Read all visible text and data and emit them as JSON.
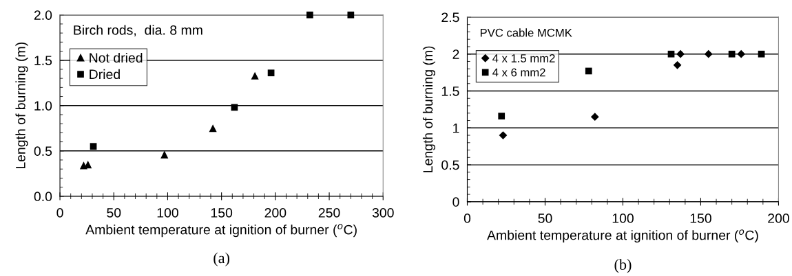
{
  "chart_data": [
    {
      "type": "scatter",
      "xlabel": "Ambient temperature at ignition of burner ($^{o}$C)",
      "ylabel": "Length of burning (m)",
      "annotations": [
        "Birch rods,  dia. 8 mm",
        "(a)"
      ],
      "series": [
        {
          "name": "Not dried",
          "color": "#000000",
          "marker": "triangle",
          "x": [
            22,
            26,
            97,
            142,
            181
          ],
          "values": [
            0.34,
            0.35,
            0.46,
            0.75,
            1.33
          ]
        },
        {
          "name": "Dried",
          "color": "#000000",
          "marker": "square",
          "x": [
            31,
            162,
            196,
            232,
            270
          ],
          "values": [
            0.55,
            0.98,
            1.36,
            2.0,
            2.0
          ]
        }
      ],
      "xlim": [
        0,
        300
      ],
      "xticks": [
        0,
        50,
        100,
        150,
        200,
        250,
        300
      ],
      "ylim": [
        0,
        2
      ],
      "yticks": [
        {
          "value": 0,
          "label": "0.0"
        },
        {
          "value": 0.5,
          "label": "0.5"
        },
        {
          "value": 1,
          "label": "1.0"
        },
        {
          "value": 1.5,
          "label": "1.5"
        },
        {
          "value": 2,
          "label": "2.0"
        }
      ],
      "grid": "y",
      "legend": "top left"
    },
    {
      "type": "scatter",
      "xlabel": "Ambient temperature at ignition of burner ($^{o}$C)",
      "ylabel": "Length of burning (m)",
      "annotations": [
        "PVC cable MCMK",
        "(b)"
      ],
      "series": [
        {
          "name": "4 x 1.5 mm2",
          "color": "#000000",
          "marker": "diamond",
          "x": [
            23,
            82,
            135,
            137,
            155,
            176
          ],
          "values": [
            0.9,
            1.15,
            1.85,
            2.0,
            2.0,
            2.0
          ]
        },
        {
          "name": "4 x 6 mm2",
          "color": "#000000",
          "marker": "square",
          "x": [
            22,
            78,
            131,
            170,
            189
          ],
          "values": [
            1.16,
            1.77,
            2.0,
            2.0,
            2.0
          ]
        }
      ],
      "xlim": [
        0,
        200
      ],
      "xticks": [
        0,
        50,
        100,
        150,
        200
      ],
      "ylim": [
        0,
        2.5
      ],
      "yticks": [
        0,
        0.5,
        1,
        1.5,
        2,
        2.5
      ],
      "grid": "y",
      "legend": "top left"
    }
  ]
}
